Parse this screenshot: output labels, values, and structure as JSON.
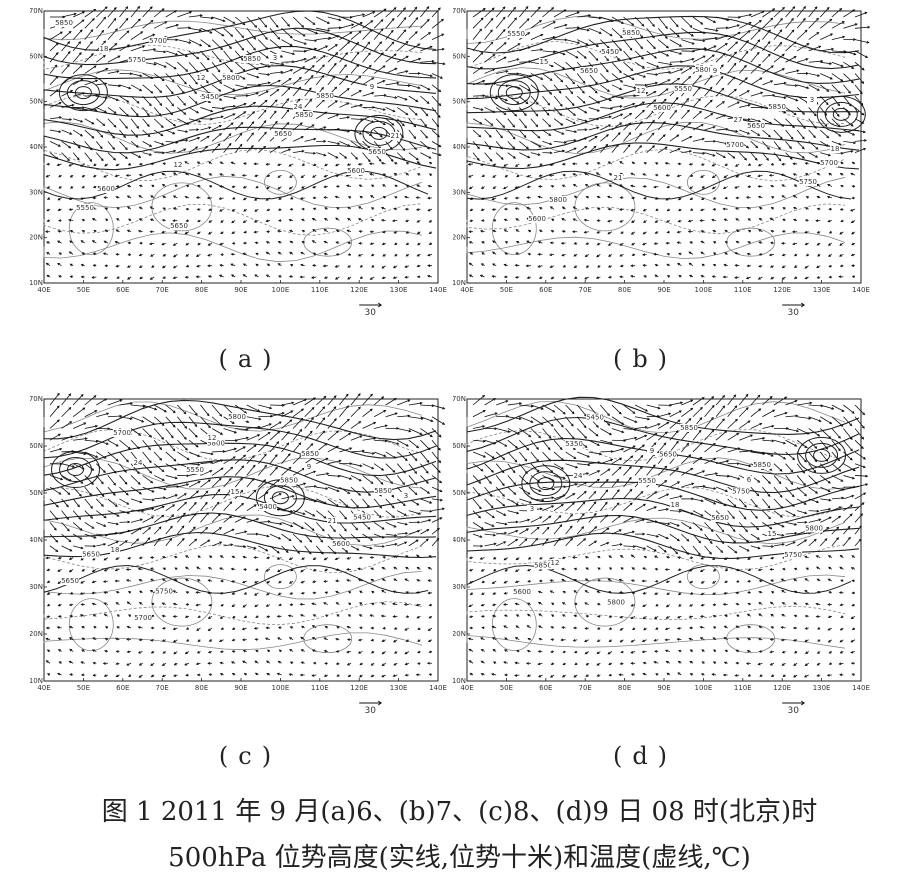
{
  "figure": {
    "panels": [
      {
        "id": "a",
        "label": "(a)",
        "geo_labels": [
          "5850",
          "5750",
          "5450",
          "5650",
          "5600",
          "5550",
          "5700",
          "5800",
          "5850",
          "5650",
          "5600",
          "5650",
          "5850",
          "5850"
        ],
        "temp_labels": [
          "18",
          "12",
          "24",
          "21",
          "12",
          "3",
          "9"
        ]
      },
      {
        "id": "b",
        "label": "(b)",
        "geo_labels": [
          "5550",
          "5650",
          "5600",
          "5700",
          "5750",
          "5600",
          "5450",
          "5550",
          "5650",
          "5700",
          "5800",
          "5850",
          "5800",
          "5850"
        ],
        "temp_labels": [
          "15",
          "12",
          "27",
          "18",
          "21",
          "9",
          "3"
        ]
      },
      {
        "id": "c",
        "label": "(c)",
        "geo_labels": [
          "5700",
          "5550",
          "5400",
          "5600",
          "5650",
          "5700",
          "5800",
          "5850",
          "5450",
          "5650",
          "5750",
          "5800",
          "5850",
          "5850"
        ],
        "temp_labels": [
          "24",
          "15",
          "21",
          "18",
          "12",
          "9",
          "3"
        ]
      },
      {
        "id": "d",
        "label": "(d)",
        "geo_labels": [
          "5350",
          "5550",
          "5650",
          "5750",
          "5600",
          "5450",
          "5650",
          "5750",
          "5800",
          "5850",
          "5800",
          "5850",
          "5850"
        ],
        "temp_labels": [
          "24",
          "18",
          "15",
          "12",
          "9",
          "6",
          "3"
        ]
      }
    ],
    "x_ticks": [
      "40E",
      "50E",
      "60E",
      "70E",
      "80E",
      "90E",
      "100E",
      "110E",
      "120E",
      "130E",
      "140E"
    ],
    "y_ticks": [
      "10N",
      "20N",
      "30N",
      "40N",
      "50N",
      "60N",
      "70N"
    ],
    "vector_ref": "30",
    "caption_line1": "图 1 2011 年 9 月(a)6、(b)7、(c)8、(d)9 日 08 时(北京)时",
    "caption_line2": "500hPa 位势高度(实线,位势十米)和温度(虚线,℃)"
  }
}
